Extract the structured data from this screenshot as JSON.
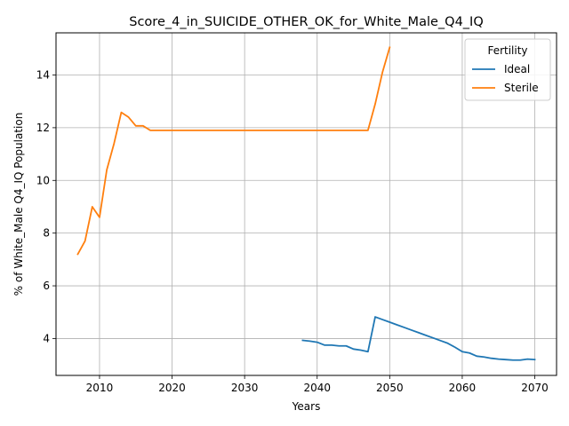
{
  "chart_data": {
    "type": "line",
    "title": "Score_4_in_SUICIDE_OTHER_OK_for_White_Male_Q4_IQ",
    "xlabel": "Years",
    "ylabel": "% of White_Male Q4_IQ Population",
    "xlim": [
      2004,
      2073
    ],
    "ylim": [
      2.6,
      15.6
    ],
    "xticks": [
      2010,
      2020,
      2030,
      2040,
      2050,
      2060,
      2070
    ],
    "yticks": [
      4,
      6,
      8,
      10,
      12,
      14
    ],
    "grid": true,
    "legend": {
      "title": "Fertility",
      "placement": "top-right"
    },
    "series": [
      {
        "name": "Ideal",
        "color": "#1f77b4",
        "x": [
          2038,
          2039,
          2040,
          2041,
          2042,
          2043,
          2044,
          2045,
          2046,
          2047,
          2048,
          2049,
          2050,
          2051,
          2052,
          2053,
          2054,
          2055,
          2056,
          2057,
          2058,
          2059,
          2060,
          2061,
          2062,
          2063,
          2064,
          2065,
          2066,
          2067,
          2068,
          2069,
          2070
        ],
        "y": [
          3.93,
          3.9,
          3.86,
          3.75,
          3.75,
          3.72,
          3.72,
          3.6,
          3.56,
          3.5,
          4.82,
          4.72,
          4.62,
          4.52,
          4.42,
          4.32,
          4.22,
          4.12,
          4.02,
          3.92,
          3.82,
          3.67,
          3.5,
          3.45,
          3.33,
          3.3,
          3.25,
          3.22,
          3.2,
          3.18,
          3.18,
          3.22,
          3.2
        ]
      },
      {
        "name": "Sterile",
        "color": "#ff7f0e",
        "x": [
          2007,
          2008,
          2009,
          2010,
          2011,
          2012,
          2013,
          2014,
          2015,
          2016,
          2017,
          2018,
          2019,
          2020,
          2025,
          2030,
          2035,
          2040,
          2045,
          2046,
          2047,
          2048,
          2049,
          2050
        ],
        "y": [
          7.2,
          7.7,
          9.0,
          8.6,
          10.4,
          11.4,
          12.58,
          12.4,
          12.07,
          12.07,
          11.9,
          11.9,
          11.9,
          11.9,
          11.9,
          11.9,
          11.9,
          11.9,
          11.9,
          11.9,
          11.9,
          12.9,
          14.1,
          15.05
        ]
      }
    ]
  }
}
